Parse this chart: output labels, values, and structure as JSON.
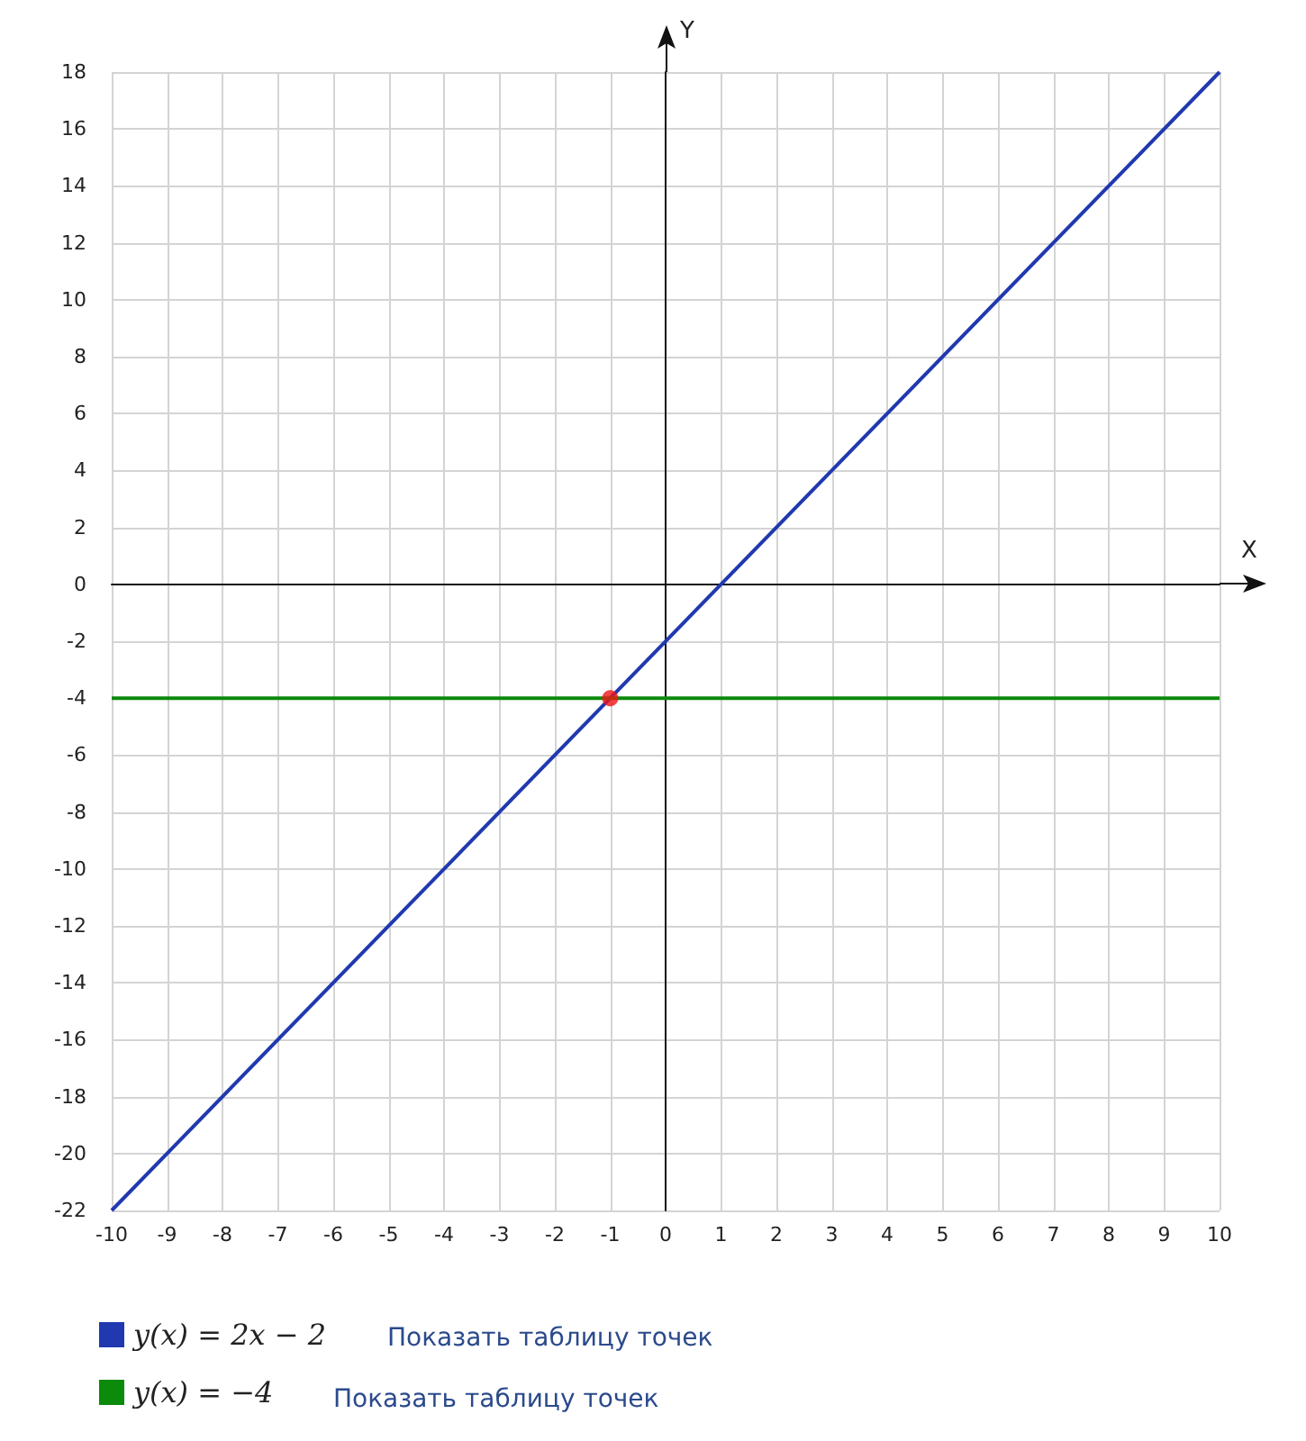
{
  "chart_data": {
    "type": "line",
    "xlabel": "X",
    "ylabel": "Y",
    "xlim": [
      -10,
      10
    ],
    "ylim": [
      -22,
      18
    ],
    "xticks": [
      -10,
      -9,
      -8,
      -7,
      -6,
      -5,
      -4,
      -3,
      -2,
      -1,
      0,
      1,
      2,
      3,
      4,
      5,
      6,
      7,
      8,
      9,
      10
    ],
    "yticks": [
      -22,
      -20,
      -18,
      -16,
      -14,
      -12,
      -10,
      -8,
      -6,
      -4,
      -2,
      0,
      2,
      4,
      6,
      8,
      10,
      12,
      14,
      16,
      18
    ],
    "grid": true,
    "legend": "bottom left",
    "marker": "none",
    "line_style": "solid",
    "series": [
      {
        "name": "y(x) = 2x − 2",
        "color": "#2039b0",
        "x": [
          -10,
          10
        ],
        "values": [
          -22,
          18
        ]
      },
      {
        "name": "y(x) = −4",
        "color": "#0b8a0b",
        "x": [
          -10,
          10
        ],
        "values": [
          -4,
          -4
        ]
      },
      {
        "type": "scatter",
        "marker": "circle",
        "color": "#f01414",
        "x": [
          -1
        ],
        "values": [
          -4
        ]
      }
    ],
    "annotations": [
      "Показать таблицу точек",
      "Показать таблицу точек"
    ]
  }
}
